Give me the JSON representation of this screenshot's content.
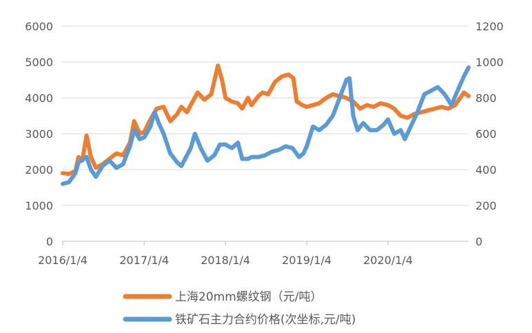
{
  "chart_data": {
    "type": "line",
    "title": "",
    "xlabel": "",
    "ylabel": "",
    "x_tick_labels": [
      "2016/1/4",
      "2017/1/4",
      "2018/1/4",
      "2019/1/4",
      "2020/1/4"
    ],
    "x_range": [
      "2016-01-04",
      "2020-12-31"
    ],
    "y_left": {
      "range": [
        0,
        6000
      ],
      "ticks": [
        "0",
        "1000",
        "2000",
        "3000",
        "4000",
        "5000",
        "6000"
      ]
    },
    "y_right": {
      "range": [
        0,
        1200
      ],
      "ticks": [
        "0",
        "200",
        "400",
        "600",
        "800",
        "1000",
        "1200"
      ]
    },
    "grid": true,
    "legend_position": "bottom",
    "series": [
      {
        "name": "上海20mm螺纹钢（元/吨）",
        "axis": "left",
        "color": "#ED7D31",
        "points": [
          [
            "2016-01-04",
            1900
          ],
          [
            "2016-02-01",
            1880
          ],
          [
            "2016-03-01",
            1950
          ],
          [
            "2016-03-15",
            2350
          ],
          [
            "2016-04-01",
            2250
          ],
          [
            "2016-04-20",
            2950
          ],
          [
            "2016-05-10",
            2350
          ],
          [
            "2016-06-01",
            2050
          ],
          [
            "2016-07-01",
            2150
          ],
          [
            "2016-08-01",
            2300
          ],
          [
            "2016-09-01",
            2450
          ],
          [
            "2016-10-01",
            2400
          ],
          [
            "2016-11-01",
            2750
          ],
          [
            "2016-11-20",
            3350
          ],
          [
            "2016-12-15",
            3000
          ],
          [
            "2017-01-04",
            3050
          ],
          [
            "2017-02-01",
            3400
          ],
          [
            "2017-03-01",
            3700
          ],
          [
            "2017-04-01",
            3750
          ],
          [
            "2017-05-01",
            3350
          ],
          [
            "2017-06-01",
            3550
          ],
          [
            "2017-06-20",
            3750
          ],
          [
            "2017-07-15",
            3600
          ],
          [
            "2017-08-01",
            3800
          ],
          [
            "2017-09-01",
            4150
          ],
          [
            "2017-10-01",
            3950
          ],
          [
            "2017-11-01",
            4100
          ],
          [
            "2017-12-01",
            4900
          ],
          [
            "2017-12-20",
            4500
          ],
          [
            "2018-01-04",
            4000
          ],
          [
            "2018-02-01",
            3900
          ],
          [
            "2018-03-01",
            3850
          ],
          [
            "2018-03-20",
            3700
          ],
          [
            "2018-04-15",
            4000
          ],
          [
            "2018-05-01",
            3800
          ],
          [
            "2018-06-01",
            4050
          ],
          [
            "2018-06-20",
            4150
          ],
          [
            "2018-07-15",
            4100
          ],
          [
            "2018-08-15",
            4450
          ],
          [
            "2018-09-15",
            4600
          ],
          [
            "2018-10-15",
            4650
          ],
          [
            "2018-11-05",
            4550
          ],
          [
            "2018-11-20",
            3900
          ],
          [
            "2018-12-15",
            3800
          ],
          [
            "2019-01-04",
            3750
          ],
          [
            "2019-02-01",
            3800
          ],
          [
            "2019-03-01",
            3850
          ],
          [
            "2019-04-01",
            4000
          ],
          [
            "2019-05-01",
            4100
          ],
          [
            "2019-06-01",
            4050
          ],
          [
            "2019-07-01",
            4000
          ],
          [
            "2019-08-01",
            3900
          ],
          [
            "2019-09-01",
            3700
          ],
          [
            "2019-10-01",
            3800
          ],
          [
            "2019-11-01",
            3750
          ],
          [
            "2019-12-01",
            3850
          ],
          [
            "2020-01-04",
            3800
          ],
          [
            "2020-02-01",
            3700
          ],
          [
            "2020-03-01",
            3500
          ],
          [
            "2020-04-01",
            3450
          ],
          [
            "2020-05-01",
            3550
          ],
          [
            "2020-06-01",
            3600
          ],
          [
            "2020-07-01",
            3650
          ],
          [
            "2020-08-01",
            3700
          ],
          [
            "2020-09-01",
            3750
          ],
          [
            "2020-10-01",
            3700
          ],
          [
            "2020-11-01",
            3800
          ],
          [
            "2020-12-10",
            4150
          ],
          [
            "2020-12-31",
            4050
          ]
        ]
      },
      {
        "name": "铁矿石主力合约价格(次坐标,元/吨)",
        "axis": "right",
        "color": "#5B9BD5",
        "points": [
          [
            "2016-01-04",
            320
          ],
          [
            "2016-02-01",
            330
          ],
          [
            "2016-03-01",
            380
          ],
          [
            "2016-03-15",
            440
          ],
          [
            "2016-04-20",
            470
          ],
          [
            "2016-05-10",
            400
          ],
          [
            "2016-06-01",
            360
          ],
          [
            "2016-07-01",
            420
          ],
          [
            "2016-08-01",
            450
          ],
          [
            "2016-09-01",
            410
          ],
          [
            "2016-10-01",
            430
          ],
          [
            "2016-11-01",
            530
          ],
          [
            "2016-11-20",
            620
          ],
          [
            "2016-12-15",
            570
          ],
          [
            "2017-01-04",
            580
          ],
          [
            "2017-02-01",
            640
          ],
          [
            "2017-02-20",
            720
          ],
          [
            "2017-03-10",
            660
          ],
          [
            "2017-04-01",
            600
          ],
          [
            "2017-05-01",
            490
          ],
          [
            "2017-06-01",
            440
          ],
          [
            "2017-06-20",
            420
          ],
          [
            "2017-07-15",
            480
          ],
          [
            "2017-08-01",
            520
          ],
          [
            "2017-08-20",
            600
          ],
          [
            "2017-09-15",
            520
          ],
          [
            "2017-10-15",
            450
          ],
          [
            "2017-11-15",
            480
          ],
          [
            "2017-12-10",
            540
          ],
          [
            "2018-01-04",
            540
          ],
          [
            "2018-02-01",
            520
          ],
          [
            "2018-03-01",
            550
          ],
          [
            "2018-03-20",
            460
          ],
          [
            "2018-04-15",
            460
          ],
          [
            "2018-05-01",
            470
          ],
          [
            "2018-06-01",
            470
          ],
          [
            "2018-07-01",
            480
          ],
          [
            "2018-08-01",
            500
          ],
          [
            "2018-09-01",
            510
          ],
          [
            "2018-10-01",
            530
          ],
          [
            "2018-11-01",
            520
          ],
          [
            "2018-12-01",
            470
          ],
          [
            "2018-12-20",
            490
          ],
          [
            "2019-01-04",
            530
          ],
          [
            "2019-02-01",
            640
          ],
          [
            "2019-03-01",
            620
          ],
          [
            "2019-04-01",
            650
          ],
          [
            "2019-05-01",
            700
          ],
          [
            "2019-06-01",
            800
          ],
          [
            "2019-07-01",
            900
          ],
          [
            "2019-07-15",
            910
          ],
          [
            "2019-08-01",
            700
          ],
          [
            "2019-08-20",
            620
          ],
          [
            "2019-09-15",
            660
          ],
          [
            "2019-10-15",
            620
          ],
          [
            "2019-11-15",
            620
          ],
          [
            "2019-12-15",
            650
          ],
          [
            "2020-01-04",
            680
          ],
          [
            "2020-02-01",
            600
          ],
          [
            "2020-03-01",
            620
          ],
          [
            "2020-03-20",
            570
          ],
          [
            "2020-04-15",
            640
          ],
          [
            "2020-05-15",
            720
          ],
          [
            "2020-06-15",
            820
          ],
          [
            "2020-07-15",
            840
          ],
          [
            "2020-08-15",
            860
          ],
          [
            "2020-09-15",
            820
          ],
          [
            "2020-10-15",
            760
          ],
          [
            "2020-11-15",
            850
          ],
          [
            "2020-12-10",
            920
          ],
          [
            "2020-12-31",
            970
          ]
        ]
      }
    ]
  }
}
